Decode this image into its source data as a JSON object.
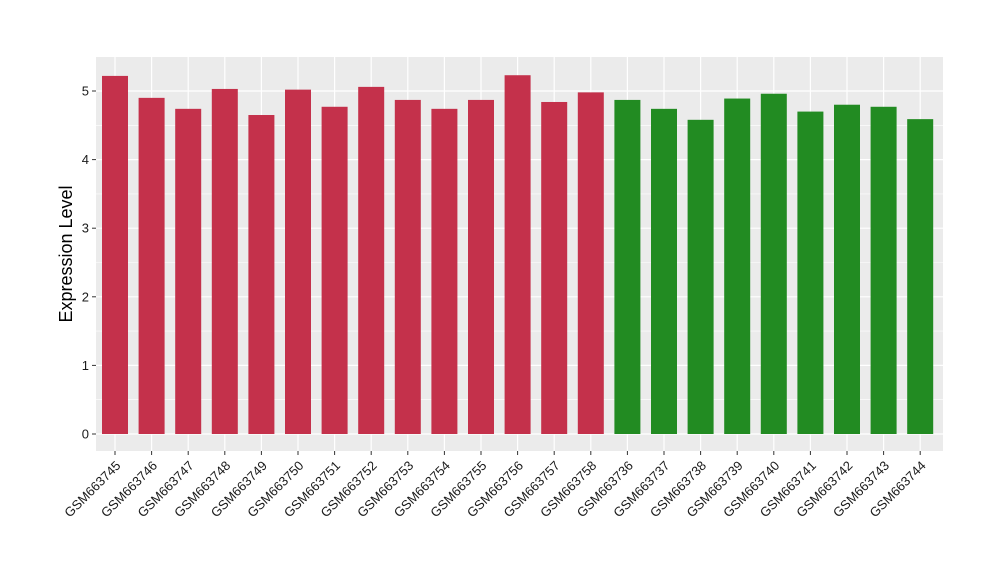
{
  "chart_data": {
    "type": "bar",
    "title": "",
    "xlabel": "",
    "ylabel": "Expression Level",
    "ylim": [
      0,
      5.5
    ],
    "yticks": [
      0,
      1,
      2,
      3,
      4,
      5
    ],
    "grid": true,
    "legend": "none",
    "categories": [
      "GSM663745",
      "GSM663746",
      "GSM663747",
      "GSM663748",
      "GSM663749",
      "GSM663750",
      "GSM663751",
      "GSM663752",
      "GSM663753",
      "GSM663754",
      "GSM663755",
      "GSM663756",
      "GSM663757",
      "GSM663758",
      "GSM663736",
      "GSM663737",
      "GSM663738",
      "GSM663739",
      "GSM663740",
      "GSM663741",
      "GSM663742",
      "GSM663743",
      "GSM663744"
    ],
    "values": [
      5.22,
      4.9,
      4.74,
      5.03,
      4.65,
      5.02,
      4.77,
      5.06,
      4.87,
      4.74,
      4.87,
      5.23,
      4.84,
      4.98,
      4.87,
      4.74,
      4.58,
      4.89,
      4.96,
      4.7,
      4.8,
      4.77,
      4.59
    ],
    "groups": [
      "red",
      "red",
      "red",
      "red",
      "red",
      "red",
      "red",
      "red",
      "red",
      "red",
      "red",
      "red",
      "red",
      "red",
      "green",
      "green",
      "green",
      "green",
      "green",
      "green",
      "green",
      "green",
      "green"
    ]
  },
  "colors": {
    "red": "#c4314b",
    "green": "#228b22",
    "panel": "#ebebeb",
    "grid": "#ffffff"
  }
}
